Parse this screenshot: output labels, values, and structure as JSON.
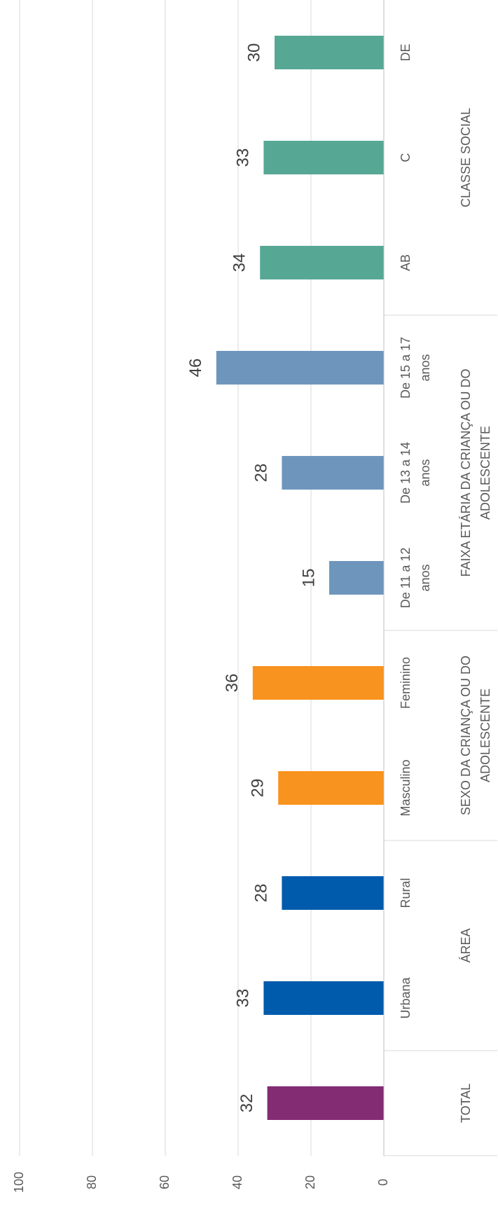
{
  "chart_data": {
    "type": "bar",
    "orientation": "rotated",
    "ylim": [
      0,
      100
    ],
    "yticks": [
      0,
      20,
      40,
      60,
      80,
      100
    ],
    "grid": true,
    "colors": {
      "total": "#832B73",
      "area": "#005BAC",
      "sexo": "#F7931E",
      "faixa": "#6E96BC",
      "classe": "#56A895",
      "grid": "#D9D9D9",
      "axis": "#BFBFBF"
    },
    "groups": [
      {
        "name": "TOTAL",
        "color_key": "total",
        "categories": [
          {
            "label": [
              ""
            ],
            "value": 32
          }
        ]
      },
      {
        "name": [
          "ÁREA"
        ],
        "color_key": "area",
        "categories": [
          {
            "label": [
              "Urbana"
            ],
            "value": 33
          },
          {
            "label": [
              "Rural"
            ],
            "value": 28
          }
        ]
      },
      {
        "name": [
          "SEXO DA CRIANÇA OU DO",
          "ADOLESCENTE"
        ],
        "color_key": "sexo",
        "categories": [
          {
            "label": [
              "Masculino"
            ],
            "value": 29
          },
          {
            "label": [
              "Feminino"
            ],
            "value": 36
          }
        ]
      },
      {
        "name": [
          "FAIXA ETÁRIA DA CRIANÇA OU DO",
          "ADOLESCENTE"
        ],
        "color_key": "faixa",
        "categories": [
          {
            "label": [
              "De 11 a 12",
              "anos"
            ],
            "value": 15
          },
          {
            "label": [
              "De 13 a 14",
              "anos"
            ],
            "value": 28
          },
          {
            "label": [
              "De 15 a 17",
              "anos"
            ],
            "value": 46
          }
        ]
      },
      {
        "name": [
          "CLASSE SOCIAL"
        ],
        "color_key": "classe",
        "categories": [
          {
            "label": [
              "AB"
            ],
            "value": 34
          },
          {
            "label": [
              "C"
            ],
            "value": 33
          },
          {
            "label": [
              "DE"
            ],
            "value": 30
          }
        ]
      }
    ]
  }
}
